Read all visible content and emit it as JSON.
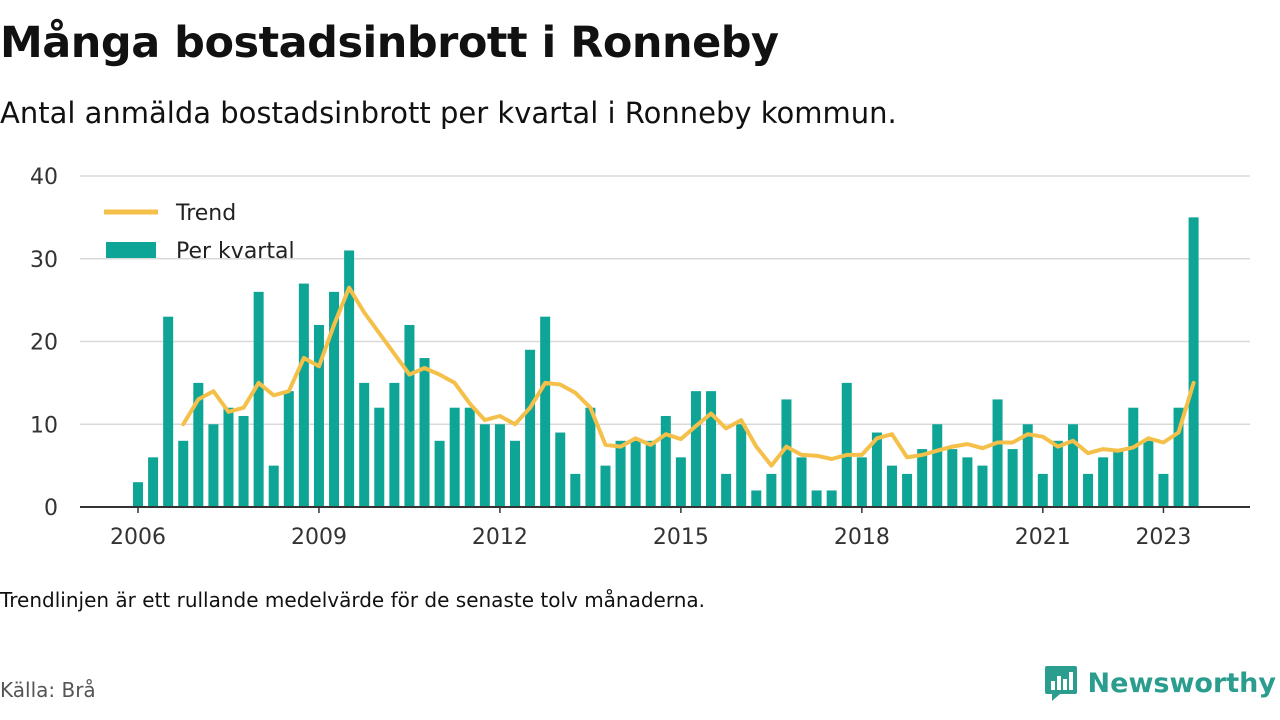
{
  "title": "Många bostadsinbrott i Ronneby",
  "subtitle": "Antal anmälda bostadsinbrott per kvartal i Ronneby kommun.",
  "note": "Trendlinjen är ett rullande medelvärde för de senaste tolv månaderna.",
  "source": "Källa: Brå",
  "brand": "Newsworthy",
  "colors": {
    "bars": "#0fa596",
    "trend": "#f5c04a",
    "brand": "#2a9d8f",
    "grid": "#d9d9d9"
  },
  "chart_data": {
    "type": "bar",
    "x_start": "2006 Q1",
    "x_step": "quarter",
    "y_ticks": [
      0,
      10,
      20,
      30,
      40
    ],
    "ylim": [
      0,
      40
    ],
    "x_ticks": [
      "2006",
      "2009",
      "2012",
      "2015",
      "2018",
      "2021",
      "2023"
    ],
    "legend_placement": "top-left",
    "grid": true,
    "series": [
      {
        "name": "Per kvartal",
        "type": "bar",
        "values": [
          3,
          6,
          23,
          8,
          15,
          10,
          12,
          11,
          26,
          5,
          14,
          27,
          22,
          26,
          31,
          15,
          12,
          15,
          22,
          18,
          8,
          12,
          12,
          10,
          10,
          8,
          19,
          23,
          9,
          4,
          12,
          5,
          8,
          8,
          8,
          11,
          6,
          14,
          14,
          4,
          10,
          2,
          4,
          13,
          6,
          2,
          2,
          15,
          6,
          9,
          5,
          4,
          7,
          10,
          7,
          6,
          5,
          13,
          7,
          10,
          4,
          8,
          10,
          4,
          6,
          7,
          12,
          8,
          4,
          12,
          35
        ]
      },
      {
        "name": "Trend",
        "type": "line",
        "values": [
          null,
          null,
          null,
          10,
          13,
          14,
          11.5,
          12,
          15,
          13.5,
          14,
          18,
          17,
          22,
          26.5,
          23.5,
          21,
          18.5,
          16,
          16.8,
          16,
          15,
          12.5,
          10.5,
          11,
          10,
          12,
          15,
          14.8,
          13.8,
          12,
          7.5,
          7.3,
          8.3,
          7.5,
          8.8,
          8.2,
          9.8,
          11.3,
          9.5,
          10.5,
          7.3,
          5,
          7.3,
          6.3,
          6.2,
          5.8,
          6.3,
          6.3,
          8.3,
          8.8,
          6,
          6.3,
          6.8,
          7.3,
          7.6,
          7.1,
          7.8,
          7.8,
          8.8,
          8.5,
          7.3,
          8,
          6.5,
          7,
          6.8,
          7.2,
          8.3,
          7.8,
          9,
          15
        ]
      }
    ]
  }
}
